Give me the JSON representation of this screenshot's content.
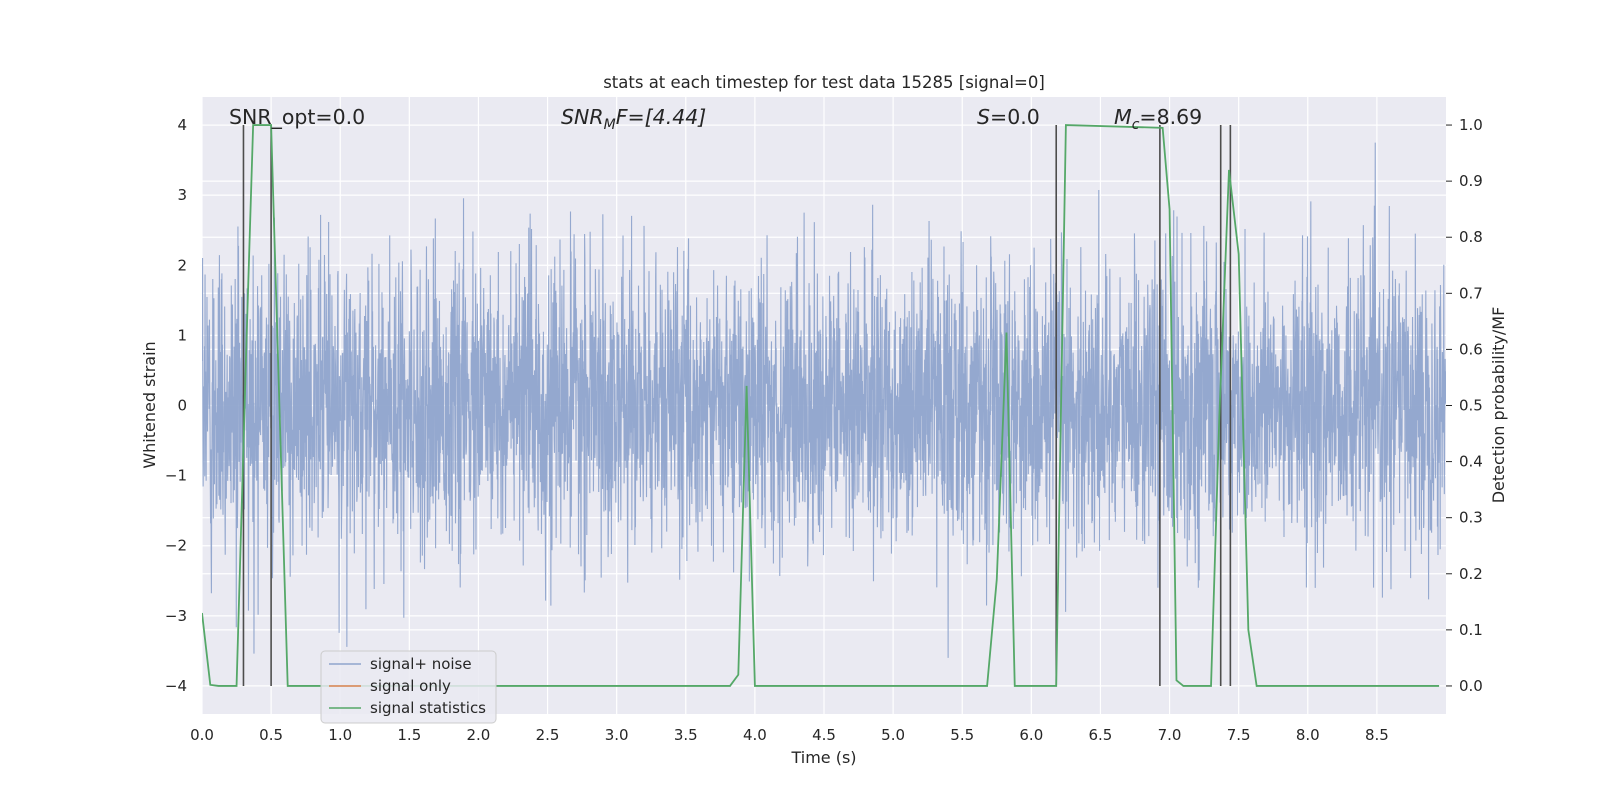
{
  "chart_data": {
    "type": "line",
    "title": "stats at each timestep for test data 15285 [signal=0]",
    "xlabel": "Time (s)",
    "ylabel": "Whitened strain",
    "y2label": "Detection probability/MF",
    "xlim": [
      0.0,
      9.0
    ],
    "ylim": [
      -4.4,
      4.4
    ],
    "y2lim": [
      -0.05,
      1.05
    ],
    "xticks": [
      "0.0",
      "0.5",
      "1.0",
      "1.5",
      "2.0",
      "2.5",
      "3.0",
      "3.5",
      "4.0",
      "4.5",
      "5.0",
      "5.5",
      "6.0",
      "6.5",
      "7.0",
      "7.5",
      "8.0",
      "8.5"
    ],
    "yticks": [
      "4",
      "3",
      "2",
      "1",
      "0",
      "−1",
      "−2",
      "−3",
      "−4"
    ],
    "y2ticks": [
      "1.0",
      "0.9",
      "0.8",
      "0.7",
      "0.6",
      "0.5",
      "0.4",
      "0.3",
      "0.2",
      "0.1",
      "0.0"
    ],
    "grid": true,
    "legend_position": "lower-left",
    "annotations": {
      "snr_opt": "SNR_opt=0.0",
      "snr_mf_main": "SNR",
      "snr_mf_sub": "M",
      "snr_mf_rest": "F=[4.44]",
      "s_main": "S",
      "s_rest": "=0.0",
      "mc_main": "M",
      "mc_sub": "c",
      "mc_rest": "=8.69"
    },
    "series": [
      {
        "name": "signal+ noise",
        "color": "#8fa4cc",
        "note_values": "whitened strain noise, sampled every 0.002 s, roughly gaussian with sigma about 1, range about -3.6 to 4.0"
      },
      {
        "name": "signal only",
        "color": "#dd8452",
        "x": [],
        "y": []
      },
      {
        "name": "signal statistics",
        "color": "#55a868",
        "x": [
          0.0,
          0.06,
          0.12,
          0.25,
          0.32,
          0.37,
          0.5,
          0.62,
          3.82,
          3.88,
          3.94,
          4.0,
          5.68,
          5.75,
          5.82,
          5.88,
          6.18,
          6.25,
          6.95,
          7.0,
          7.05,
          7.1,
          7.3,
          7.36,
          7.43,
          7.5,
          7.57,
          7.63,
          7.68,
          8.95
        ],
        "y": [
          0.13,
          0.002,
          0.0,
          0.0,
          0.6,
          1.0,
          1.0,
          0.0,
          0.0,
          0.02,
          0.535,
          0.0,
          0.0,
          0.19,
          0.63,
          0.0,
          0.0,
          1.0,
          0.995,
          0.85,
          0.01,
          0.0,
          0.0,
          0.48,
          0.92,
          0.77,
          0.1,
          0.0,
          0.0,
          0.0
        ]
      }
    ],
    "vertical_lines": [
      0.3,
      0.5,
      6.18,
      6.93,
      7.37,
      7.44
    ],
    "vertical_line_color": "#4d4d4d"
  }
}
